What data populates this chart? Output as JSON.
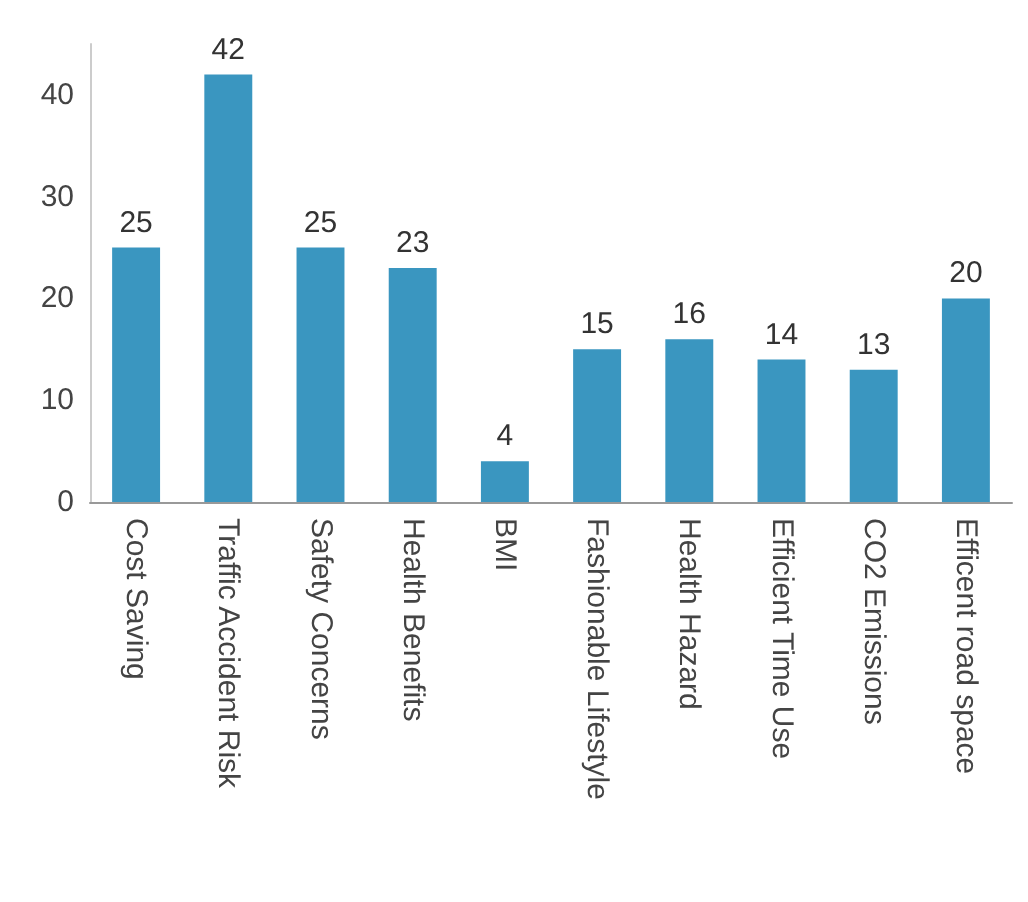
{
  "chart_data": {
    "type": "bar",
    "categories": [
      "Cost Saving",
      "Traffic Accident Risk",
      "Safety Concerns",
      "Health Benefits",
      "BMI",
      "Fashionable Lifestyle",
      "Health Hazard",
      "Efficient Time Use",
      "CO2 Emissions",
      "Efficent road space"
    ],
    "values": [
      25,
      42,
      25,
      23,
      4,
      15,
      16,
      14,
      13,
      20
    ],
    "color": "#3a96c0",
    "ylim": [
      0,
      45
    ],
    "yticks": [
      0,
      10,
      20,
      30,
      40
    ],
    "grid": false,
    "data_labels": true
  }
}
